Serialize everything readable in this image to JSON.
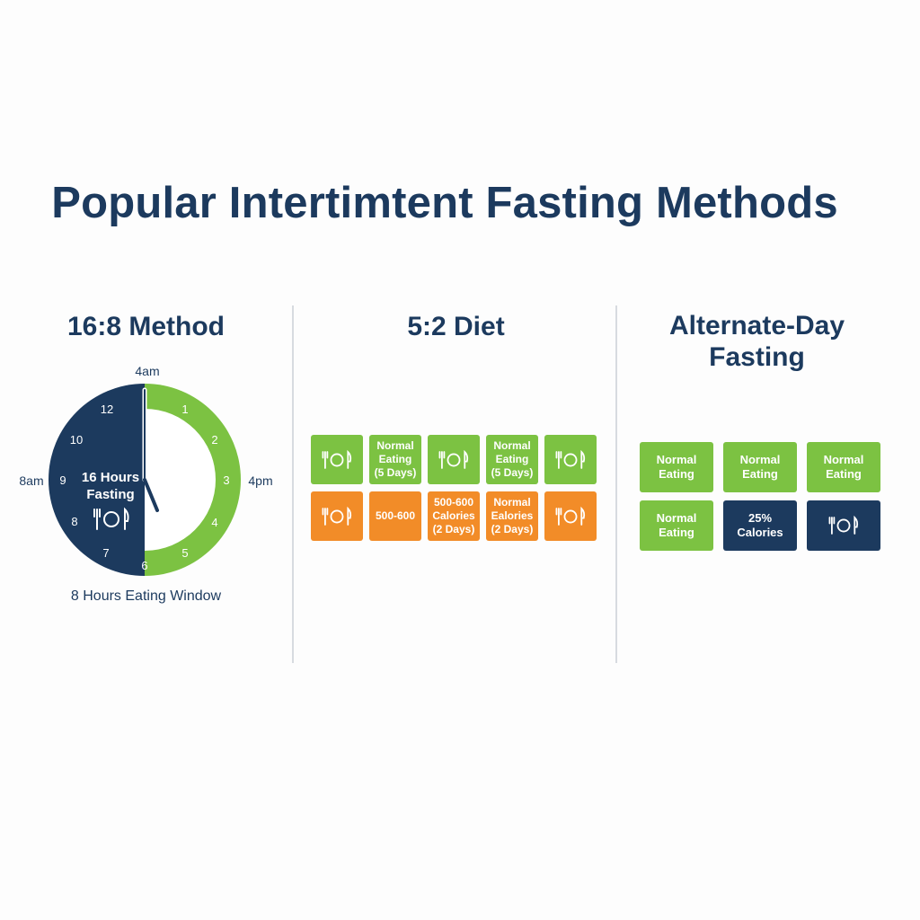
{
  "title": "Popular Intertimtent Fasting Methods",
  "colors": {
    "navy": "#1c3a5e",
    "green": "#7cc242",
    "orange": "#f28c28",
    "background": "#fdfdfd"
  },
  "method_16_8": {
    "title": "16:8 Method",
    "time_labels": {
      "top": "4am",
      "left": "8am",
      "right": "4pm"
    },
    "clock_numbers": [
      "12",
      "1",
      "2",
      "3",
      "4",
      "5",
      "6",
      "7",
      "8",
      "9",
      "10"
    ],
    "fasting_label": "16 Hours\nFasting",
    "fasting_icon": "fork-plate-knife-icon",
    "fasting_hours": 16,
    "eating_hours": 8,
    "caption": "8 Hours Eating Window"
  },
  "diet_5_2": {
    "title": "5:2 Diet",
    "rows": [
      [
        {
          "kind": "icon",
          "icon": "fork-plate-knife-icon",
          "color": "green"
        },
        {
          "kind": "text",
          "text": "Normal\nEating\n(5 Days)",
          "color": "green"
        },
        {
          "kind": "icon",
          "icon": "fork-plate-knife-icon",
          "color": "green"
        },
        {
          "kind": "text",
          "text": "Normal\nEating\n(5 Days)",
          "color": "green"
        },
        {
          "kind": "icon",
          "icon": "fork-plate-knife-icon",
          "color": "green"
        }
      ],
      [
        {
          "kind": "icon",
          "icon": "fork-plate-knife-icon",
          "color": "orange"
        },
        {
          "kind": "text",
          "text": "500-600",
          "color": "orange"
        },
        {
          "kind": "text",
          "text": "500-600\nCalories\n(2 Days)",
          "color": "orange"
        },
        {
          "kind": "text",
          "text": "Normal\nEalories\n(2 Days)",
          "color": "orange"
        },
        {
          "kind": "icon",
          "icon": "fork-plate-knife-icon",
          "color": "orange"
        }
      ]
    ]
  },
  "alternate_day": {
    "title": "Alternate-Day\nFasting",
    "rows": [
      [
        {
          "kind": "text",
          "text": "Normal\nEating",
          "color": "green"
        },
        {
          "kind": "text",
          "text": "Normal\nEating",
          "color": "green"
        },
        {
          "kind": "text",
          "text": "Normal\nEating",
          "color": "green"
        }
      ],
      [
        {
          "kind": "text",
          "text": "Normal\nEating",
          "color": "green"
        },
        {
          "kind": "text",
          "text": "25%\nCalories",
          "color": "navy"
        },
        {
          "kind": "icon",
          "icon": "fork-plate-knife-icon",
          "color": "navy"
        }
      ]
    ]
  }
}
